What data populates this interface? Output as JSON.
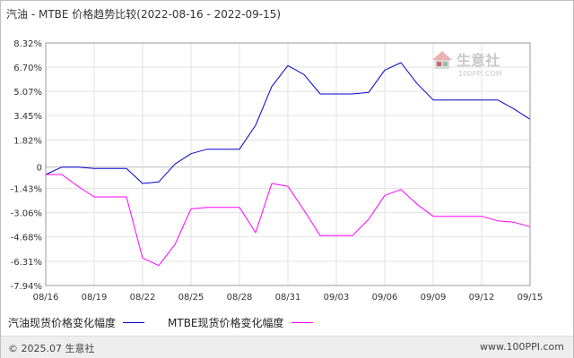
{
  "header": {
    "title": "汽油 - MTBE 价格趋势比较(2022-08-16 - 2022-09-15)"
  },
  "watermark": {
    "text": "生意社",
    "url": "100PPI.COM",
    "icon": "house-logo-icon"
  },
  "footer": {
    "copyright": "© 2025.07 生意社",
    "site": "www.100PPI.com"
  },
  "chart_data": {
    "type": "line",
    "title": "汽油 - MTBE 价格趋势比较(2022-08-16 - 2022-09-15)",
    "x_range": [
      "2022-08-16",
      "2022-09-15"
    ],
    "y_range": [
      -7.94,
      8.32
    ],
    "y_ticks": [
      "8.32%",
      "6.70%",
      "5.07%",
      "3.45%",
      "1.82%",
      "0",
      "-1.43%",
      "-3.06%",
      "-4.68%",
      "-6.31%",
      "-7.94%"
    ],
    "y_tick_values": [
      8.32,
      6.7,
      5.07,
      3.45,
      1.82,
      0,
      -1.43,
      -3.06,
      -4.68,
      -6.31,
      -7.94
    ],
    "x_ticks": [
      "08/16",
      "08/19",
      "08/22",
      "08/25",
      "08/28",
      "08/31",
      "09/03",
      "09/06",
      "09/09",
      "09/12",
      "09/15"
    ],
    "grid": true,
    "legend_position": "bottom-left",
    "series": [
      {
        "name": "汽油现货价格变化幅度",
        "color": "#0000cc",
        "points": [
          [
            "2022-08-16",
            -0.5
          ],
          [
            "2022-08-17",
            0.0
          ],
          [
            "2022-08-18",
            0.0
          ],
          [
            "2022-08-19",
            -0.1
          ],
          [
            "2022-08-20",
            -0.1
          ],
          [
            "2022-08-21",
            -0.1
          ],
          [
            "2022-08-22",
            -1.1
          ],
          [
            "2022-08-23",
            -1.0
          ],
          [
            "2022-08-24",
            0.2
          ],
          [
            "2022-08-25",
            0.9
          ],
          [
            "2022-08-26",
            1.2
          ],
          [
            "2022-08-27",
            1.2
          ],
          [
            "2022-08-28",
            1.2
          ],
          [
            "2022-08-29",
            2.8
          ],
          [
            "2022-08-30",
            5.4
          ],
          [
            "2022-08-31",
            6.8
          ],
          [
            "2022-09-01",
            6.2
          ],
          [
            "2022-09-02",
            4.9
          ],
          [
            "2022-09-03",
            4.9
          ],
          [
            "2022-09-04",
            4.9
          ],
          [
            "2022-09-05",
            5.0
          ],
          [
            "2022-09-06",
            6.5
          ],
          [
            "2022-09-07",
            7.0
          ],
          [
            "2022-09-08",
            5.6
          ],
          [
            "2022-09-09",
            4.5
          ],
          [
            "2022-09-10",
            4.5
          ],
          [
            "2022-09-11",
            4.5
          ],
          [
            "2022-09-12",
            4.5
          ],
          [
            "2022-09-13",
            4.5
          ],
          [
            "2022-09-14",
            3.9
          ],
          [
            "2022-09-15",
            3.2
          ]
        ]
      },
      {
        "name": "MTBE现货价格变化幅度",
        "color": "#ff00ff",
        "points": [
          [
            "2022-08-16",
            -0.5
          ],
          [
            "2022-08-17",
            -0.5
          ],
          [
            "2022-08-18",
            -1.3
          ],
          [
            "2022-08-19",
            -2.0
          ],
          [
            "2022-08-20",
            -2.0
          ],
          [
            "2022-08-21",
            -2.0
          ],
          [
            "2022-08-22",
            -6.1
          ],
          [
            "2022-08-23",
            -6.6
          ],
          [
            "2022-08-24",
            -5.2
          ],
          [
            "2022-08-25",
            -2.8
          ],
          [
            "2022-08-26",
            -2.7
          ],
          [
            "2022-08-27",
            -2.7
          ],
          [
            "2022-08-28",
            -2.7
          ],
          [
            "2022-08-29",
            -4.4
          ],
          [
            "2022-08-30",
            -1.1
          ],
          [
            "2022-08-31",
            -1.3
          ],
          [
            "2022-09-01",
            -2.9
          ],
          [
            "2022-09-02",
            -4.6
          ],
          [
            "2022-09-03",
            -4.6
          ],
          [
            "2022-09-04",
            -4.6
          ],
          [
            "2022-09-05",
            -3.5
          ],
          [
            "2022-09-06",
            -1.9
          ],
          [
            "2022-09-07",
            -1.5
          ],
          [
            "2022-09-08",
            -2.5
          ],
          [
            "2022-09-09",
            -3.3
          ],
          [
            "2022-09-10",
            -3.3
          ],
          [
            "2022-09-11",
            -3.3
          ],
          [
            "2022-09-12",
            -3.3
          ],
          [
            "2022-09-13",
            -3.6
          ],
          [
            "2022-09-14",
            -3.7
          ],
          [
            "2022-09-15",
            -4.0
          ]
        ]
      }
    ]
  }
}
